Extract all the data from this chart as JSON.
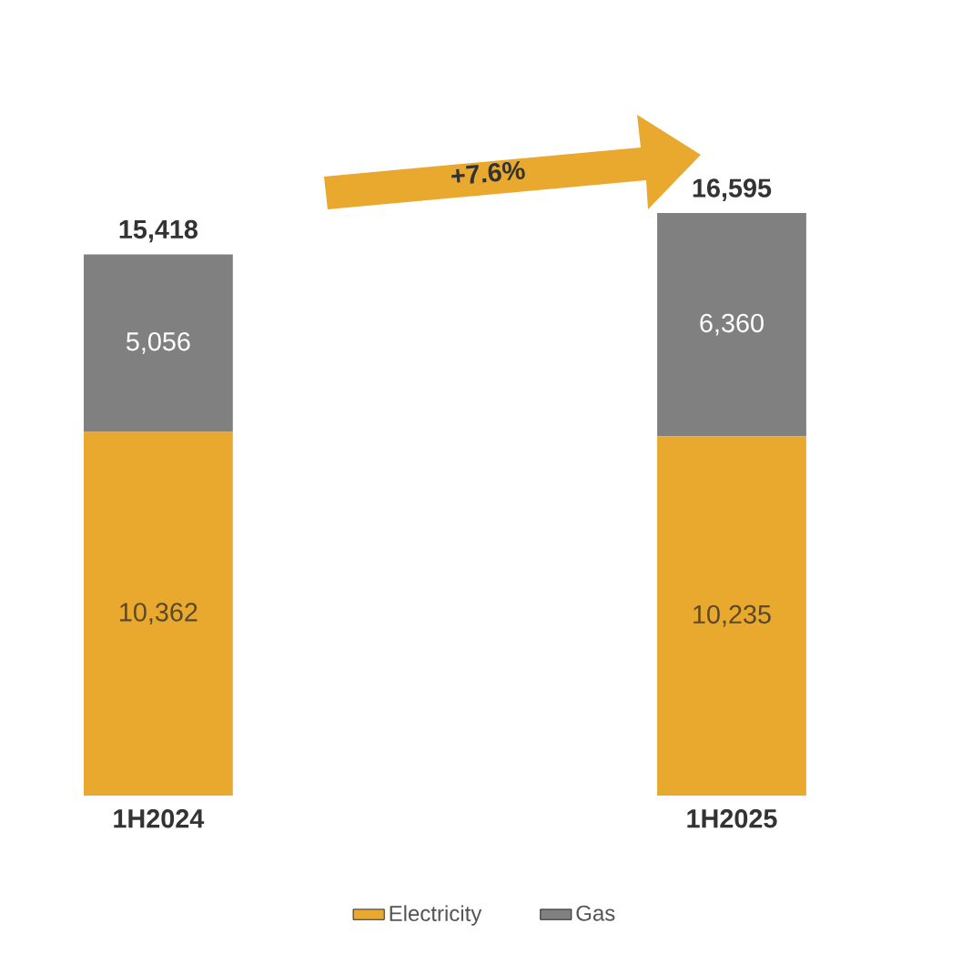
{
  "chart_data": {
    "type": "bar",
    "stacked": true,
    "categories": [
      "1H2024",
      "1H2025"
    ],
    "series": [
      {
        "name": "Electricity",
        "color": "#e9a92f",
        "values": [
          10362,
          10235
        ],
        "value_labels": [
          "10,362",
          "10,235"
        ]
      },
      {
        "name": "Gas",
        "color": "#808080",
        "values": [
          5056,
          6360
        ],
        "value_labels": [
          "5,056",
          "6,360"
        ]
      }
    ],
    "totals": [
      "15,418",
      "16,595"
    ],
    "annotations": [
      "+7.6%"
    ],
    "legend": "bottom"
  }
}
